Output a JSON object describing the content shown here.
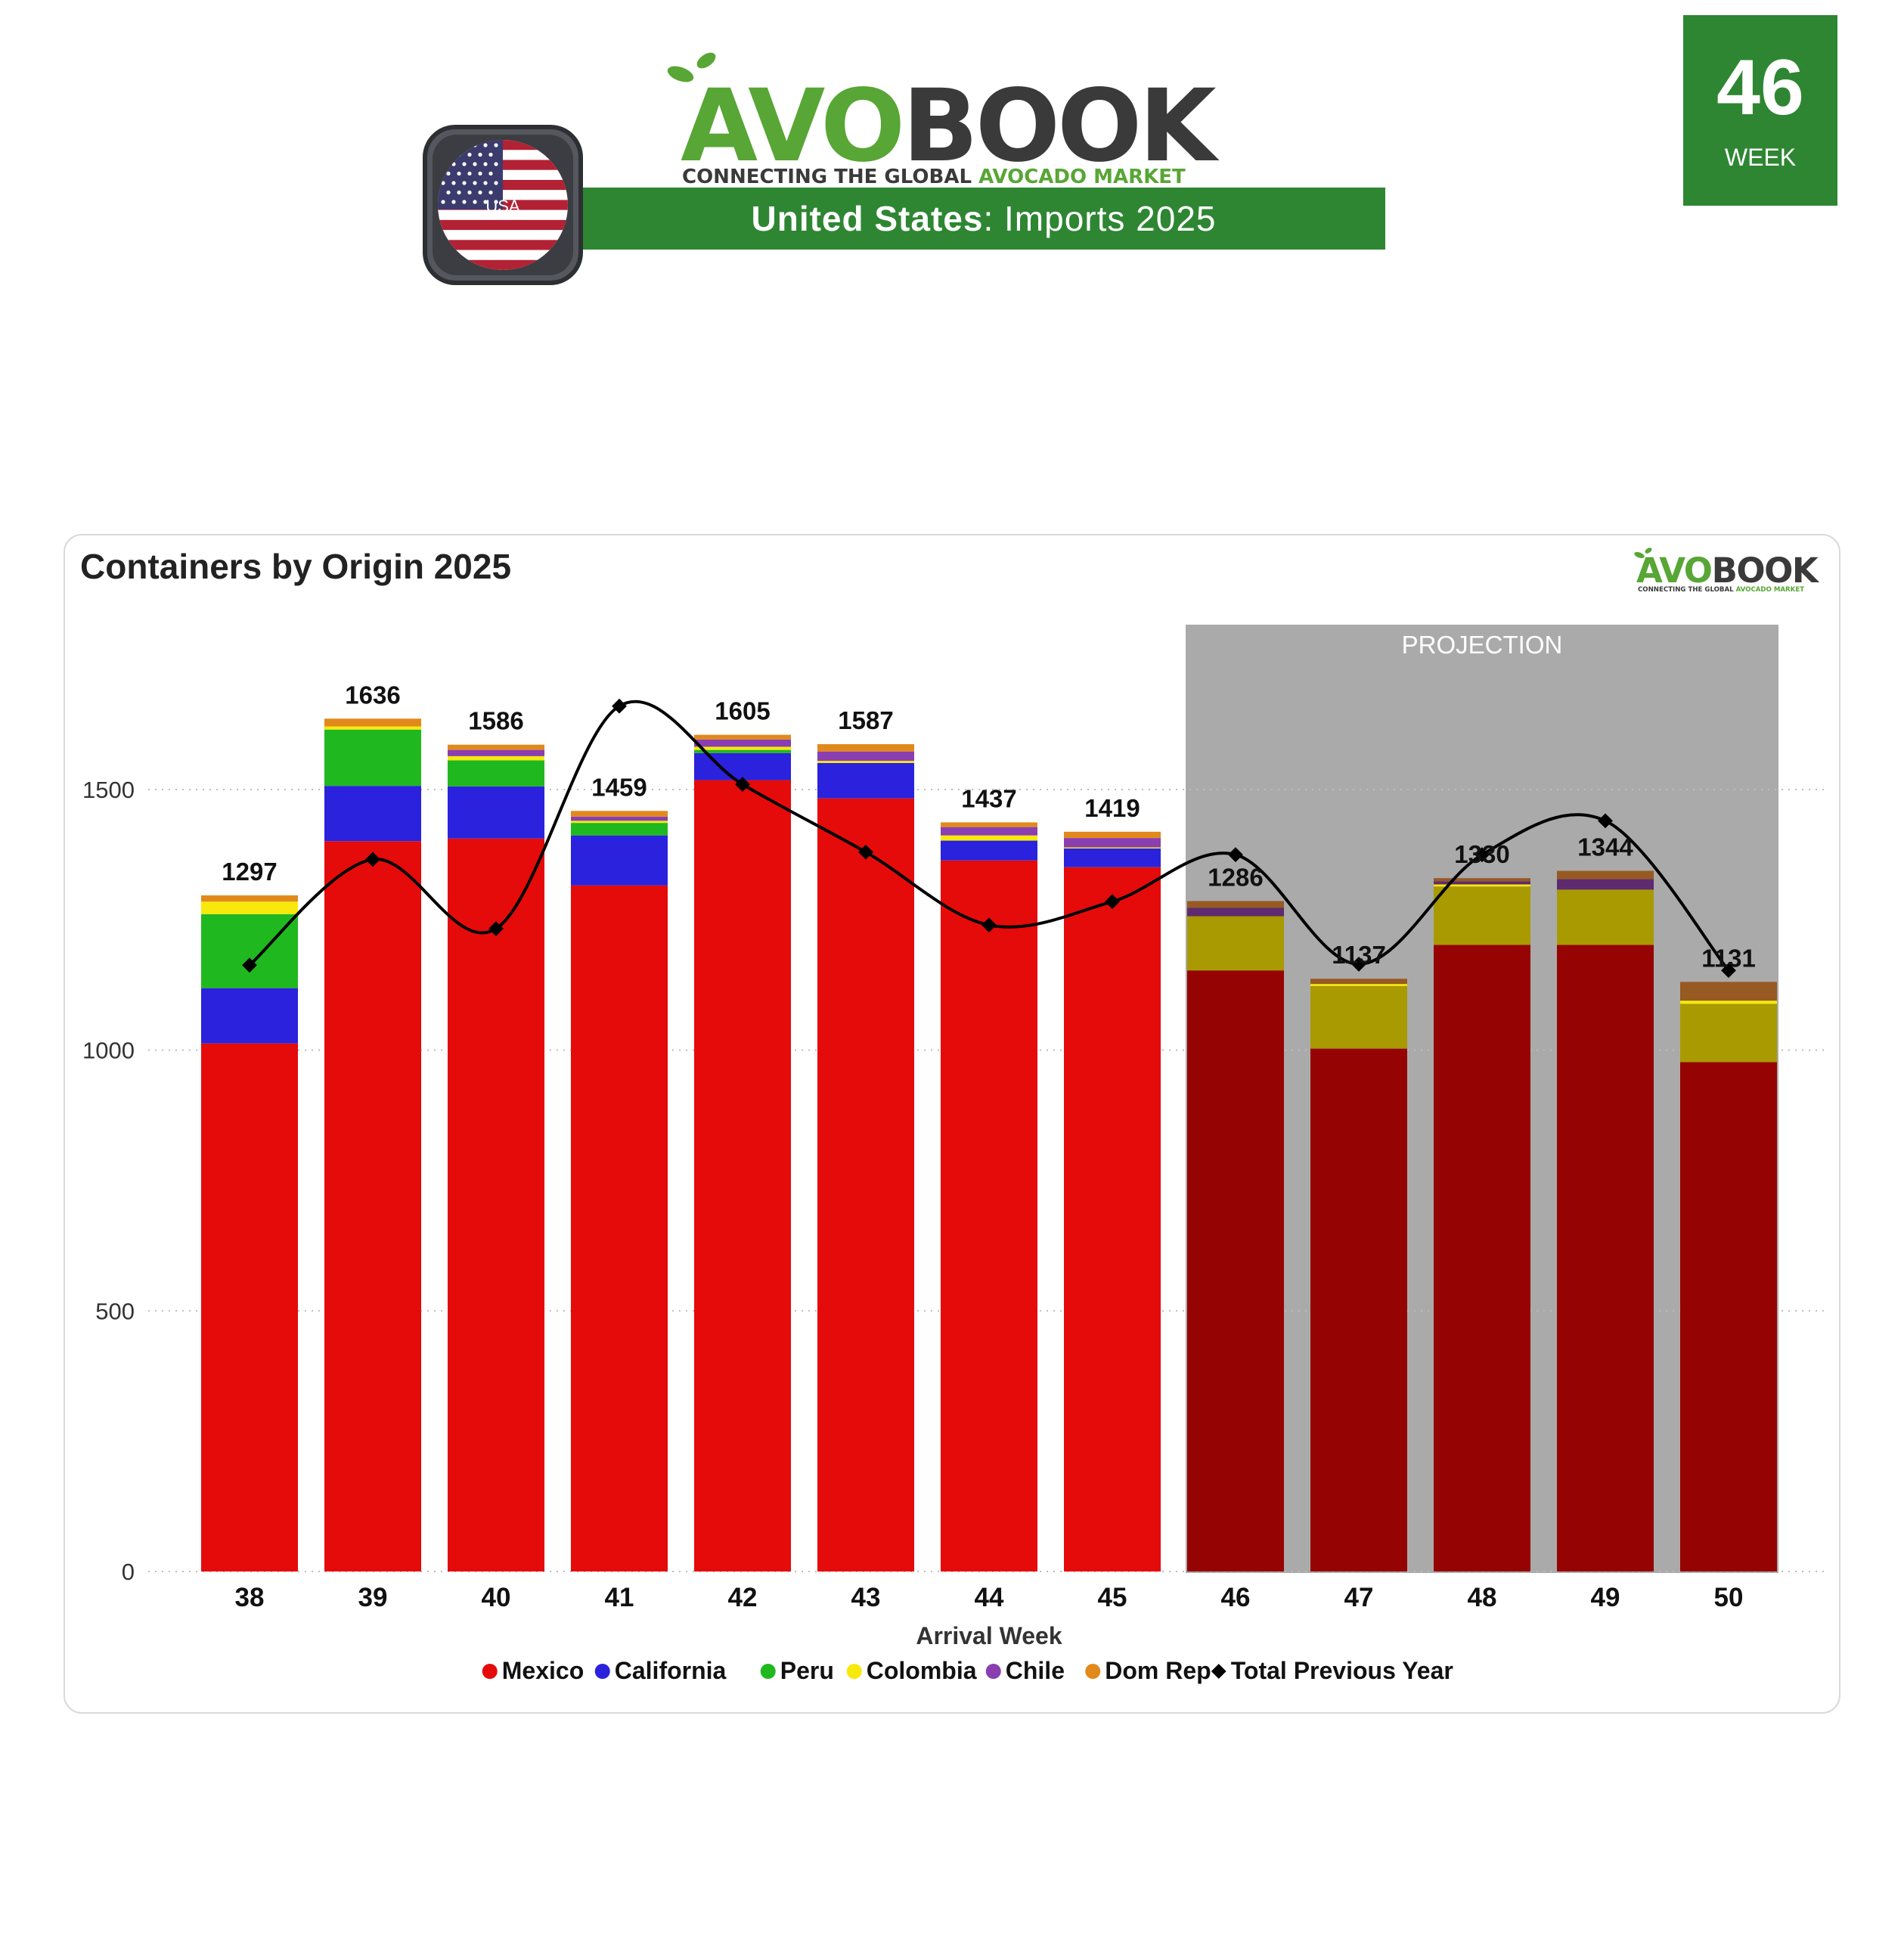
{
  "header": {
    "logo_primary": "AVO",
    "logo_secondary": "BOOK",
    "tagline_prefix": "CONNECTING THE GLOBAL ",
    "tagline_suffix": "AVOCADO MARKET",
    "country_flag_label": "USA",
    "subtitle_country": "United States",
    "subtitle_rest": ": Imports 2025",
    "week_number": "46",
    "week_label": "WEEK"
  },
  "colors": {
    "brand_green": "#2e8633",
    "logo_green": "#58a635",
    "logo_dark": "#3a3a3a",
    "projection_band": "#aaaaaa"
  },
  "chart_data": {
    "type": "bar",
    "stacked": true,
    "title": "Containers by Origin 2025",
    "xlabel": "Arrival Week",
    "ylabel": "",
    "ylim": [
      0,
      1800
    ],
    "yticks": [
      0,
      500,
      1000,
      1500
    ],
    "grid": "horizontal-dotted",
    "legend_position": "bottom",
    "projection_label": "PROJECTION",
    "projection_from_week": "46",
    "categories": [
      "38",
      "39",
      "40",
      "41",
      "42",
      "43",
      "44",
      "45",
      "46",
      "47",
      "48",
      "49",
      "50"
    ],
    "series": [
      {
        "name": "Mexico",
        "color": "#e50b0b",
        "projected_color": "#960303",
        "values": [
          1013,
          1401,
          1406,
          1316,
          1518,
          1483,
          1364,
          1351,
          1153,
          1003,
          1202,
          1202,
          977
        ]
      },
      {
        "name": "California",
        "color": "#2a22dc",
        "projected_color": "#2a22dc",
        "values": [
          106,
          106,
          100,
          96,
          52,
          68,
          38,
          36,
          0,
          0,
          0,
          0,
          0
        ]
      },
      {
        "name": "Peru",
        "color": "#1fb81f",
        "projected_color": "#a89a00",
        "values": [
          142,
          108,
          50,
          24,
          6,
          0,
          0,
          0,
          104,
          120,
          112,
          106,
          112
        ]
      },
      {
        "name": "Colombia",
        "color": "#f7e90b",
        "projected_color": "#f7e90b",
        "values": [
          24,
          6,
          8,
          4,
          6,
          4,
          10,
          2,
          0,
          4,
          4,
          0,
          6
        ]
      },
      {
        "name": "Chile",
        "color": "#8a3eb0",
        "projected_color": "#5e2a70",
        "values": [
          0,
          0,
          12,
          8,
          14,
          18,
          16,
          18,
          16,
          0,
          6,
          20,
          0
        ]
      },
      {
        "name": "Dom Rep",
        "color": "#e2891b",
        "projected_color": "#965a22",
        "values": [
          12,
          15,
          10,
          11,
          9,
          14,
          9,
          12,
          13,
          10,
          6,
          16,
          36
        ]
      }
    ],
    "totals": [
      1297,
      1636,
      1586,
      1459,
      1605,
      1587,
      1437,
      1419,
      1286,
      1137,
      1330,
      1344,
      1131
    ],
    "line_series": {
      "name": "Total Previous Year",
      "color": "#000000",
      "values": [
        1163,
        1366,
        1233,
        1660,
        1510,
        1380,
        1240,
        1285,
        1375,
        1165,
        1375,
        1440,
        1153
      ]
    }
  }
}
